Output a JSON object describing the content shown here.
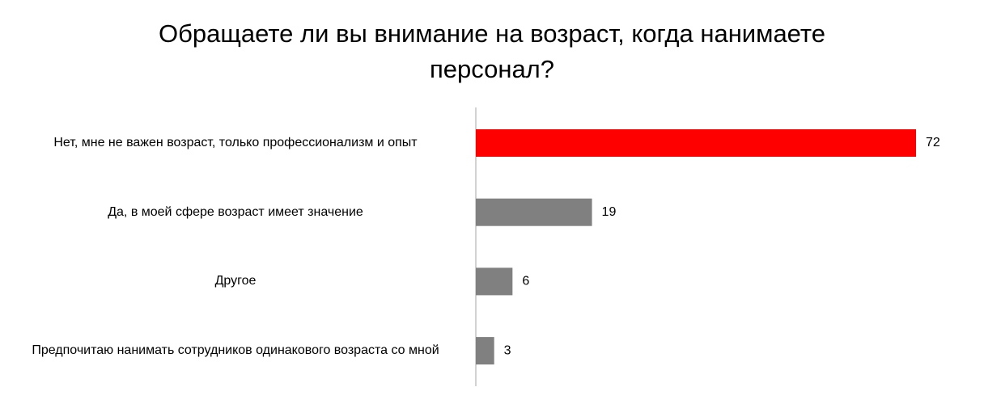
{
  "chart_data": {
    "type": "hbar",
    "title": "Обращаете ли вы внимание на возраст, когда нанимаете персонал?",
    "categories": [
      "Нет, мне не важен возраст, только профессионализм и опыт",
      "Да, в моей сфере возраст имеет значение",
      "Другое",
      "Предпочитаю нанимать сотрудников одинакового возраста со мной"
    ],
    "values": [
      72,
      19,
      6,
      3
    ],
    "colors": [
      "#ff0000",
      "#808080",
      "#808080",
      "#808080"
    ]
  }
}
